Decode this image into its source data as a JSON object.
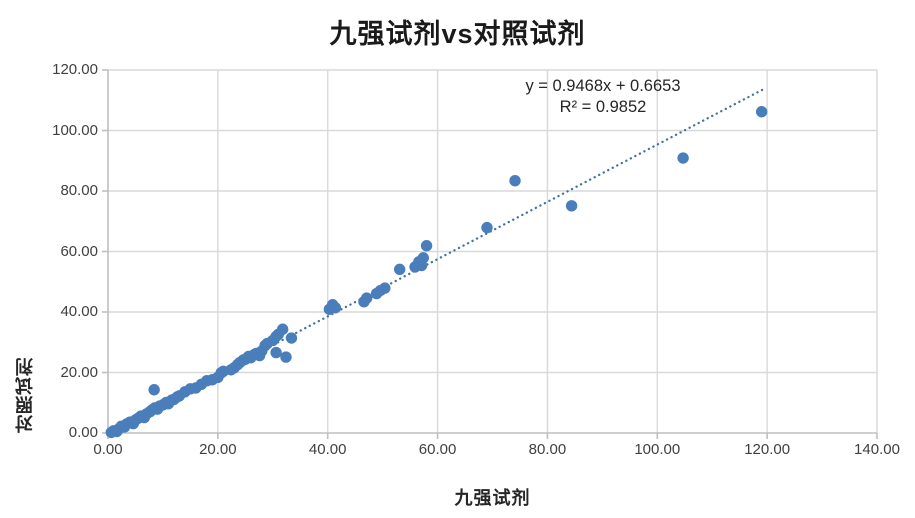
{
  "chart_data": {
    "type": "scatter",
    "title": "九强试剂vs对照试剂",
    "xlabel": "九强试剂",
    "ylabel": "对照试剂",
    "xlim": [
      0,
      140
    ],
    "ylim": [
      0,
      120
    ],
    "grid": true,
    "legend": "none",
    "x_ticks": [
      {
        "value": 0,
        "label": "0.00"
      },
      {
        "value": 20,
        "label": "20.00"
      },
      {
        "value": 40,
        "label": "40.00"
      },
      {
        "value": 60,
        "label": "60.00"
      },
      {
        "value": 80,
        "label": "80.00"
      },
      {
        "value": 100,
        "label": "100.00"
      },
      {
        "value": 120,
        "label": "120.00"
      },
      {
        "value": 140,
        "label": "140.00"
      }
    ],
    "y_ticks": [
      {
        "value": 0,
        "label": "0.00"
      },
      {
        "value": 20,
        "label": "20.00"
      },
      {
        "value": 40,
        "label": "40.00"
      },
      {
        "value": 60,
        "label": "60.00"
      },
      {
        "value": 80,
        "label": "80.00"
      },
      {
        "value": 100,
        "label": "100.00"
      },
      {
        "value": 120,
        "label": "120.00"
      }
    ],
    "points": [
      [
        0.6,
        0.2
      ],
      [
        1.0,
        0.7
      ],
      [
        1.6,
        0.5
      ],
      [
        2.0,
        1.4
      ],
      [
        2.4,
        2.2
      ],
      [
        3.0,
        2.0
      ],
      [
        3.4,
        3.0
      ],
      [
        4.0,
        3.6
      ],
      [
        4.6,
        3.1
      ],
      [
        5.0,
        4.3
      ],
      [
        5.5,
        4.9
      ],
      [
        6.0,
        5.6
      ],
      [
        6.6,
        5.1
      ],
      [
        7.0,
        6.3
      ],
      [
        7.6,
        7.0
      ],
      [
        8.0,
        7.6
      ],
      [
        8.5,
        8.3
      ],
      [
        8.4,
        14.3
      ],
      [
        9.0,
        7.9
      ],
      [
        9.4,
        8.9
      ],
      [
        10.0,
        9.3
      ],
      [
        10.6,
        10.1
      ],
      [
        11.0,
        9.7
      ],
      [
        11.6,
        10.9
      ],
      [
        12.0,
        11.1
      ],
      [
        12.6,
        11.9
      ],
      [
        13.0,
        12.3
      ],
      [
        14.0,
        13.6
      ],
      [
        15.0,
        14.6
      ],
      [
        16.0,
        14.9
      ],
      [
        17.0,
        16.1
      ],
      [
        18.0,
        17.3
      ],
      [
        19.0,
        17.6
      ],
      [
        20.0,
        18.4
      ],
      [
        20.6,
        19.9
      ],
      [
        21.0,
        20.4
      ],
      [
        22.4,
        20.9
      ],
      [
        23.0,
        21.6
      ],
      [
        23.6,
        22.6
      ],
      [
        24.0,
        23.3
      ],
      [
        24.6,
        24.1
      ],
      [
        25.0,
        24.4
      ],
      [
        25.6,
        25.3
      ],
      [
        26.0,
        24.9
      ],
      [
        26.6,
        25.9
      ],
      [
        27.0,
        26.3
      ],
      [
        27.6,
        25.6
      ],
      [
        28.0,
        27.1
      ],
      [
        28.6,
        28.9
      ],
      [
        29.0,
        29.6
      ],
      [
        30.0,
        30.6
      ],
      [
        30.6,
        31.9
      ],
      [
        31.0,
        32.6
      ],
      [
        31.8,
        34.3
      ],
      [
        30.6,
        26.6
      ],
      [
        32.4,
        25.1
      ],
      [
        33.4,
        31.4
      ],
      [
        40.3,
        40.9
      ],
      [
        40.9,
        42.4
      ],
      [
        41.4,
        41.4
      ],
      [
        46.6,
        43.4
      ],
      [
        47.1,
        44.6
      ],
      [
        48.9,
        46.1
      ],
      [
        49.6,
        47.1
      ],
      [
        50.4,
        47.9
      ],
      [
        53.1,
        54.1
      ],
      [
        55.9,
        54.9
      ],
      [
        56.6,
        56.6
      ],
      [
        57.1,
        55.4
      ],
      [
        57.4,
        57.9
      ],
      [
        58.0,
        61.9
      ],
      [
        69.0,
        67.9
      ],
      [
        74.1,
        83.4
      ],
      [
        84.4,
        75.1
      ],
      [
        104.7,
        90.9
      ],
      [
        119.0,
        106.2
      ]
    ],
    "trendline": {
      "slope": 0.9468,
      "intercept": 0.6653,
      "equation": "y = 0.9468x + 0.6653",
      "r_squared": "R² = 0.9852",
      "x_start": 0.5,
      "x_end": 119.5
    },
    "colors": {
      "marker": "#4a7ebb",
      "trendline": "#41719c",
      "gridline": "#d9d9d9",
      "axisline": "#bfbfbf",
      "tick_text": "#404040",
      "title_text": "#1a1a1a"
    }
  }
}
